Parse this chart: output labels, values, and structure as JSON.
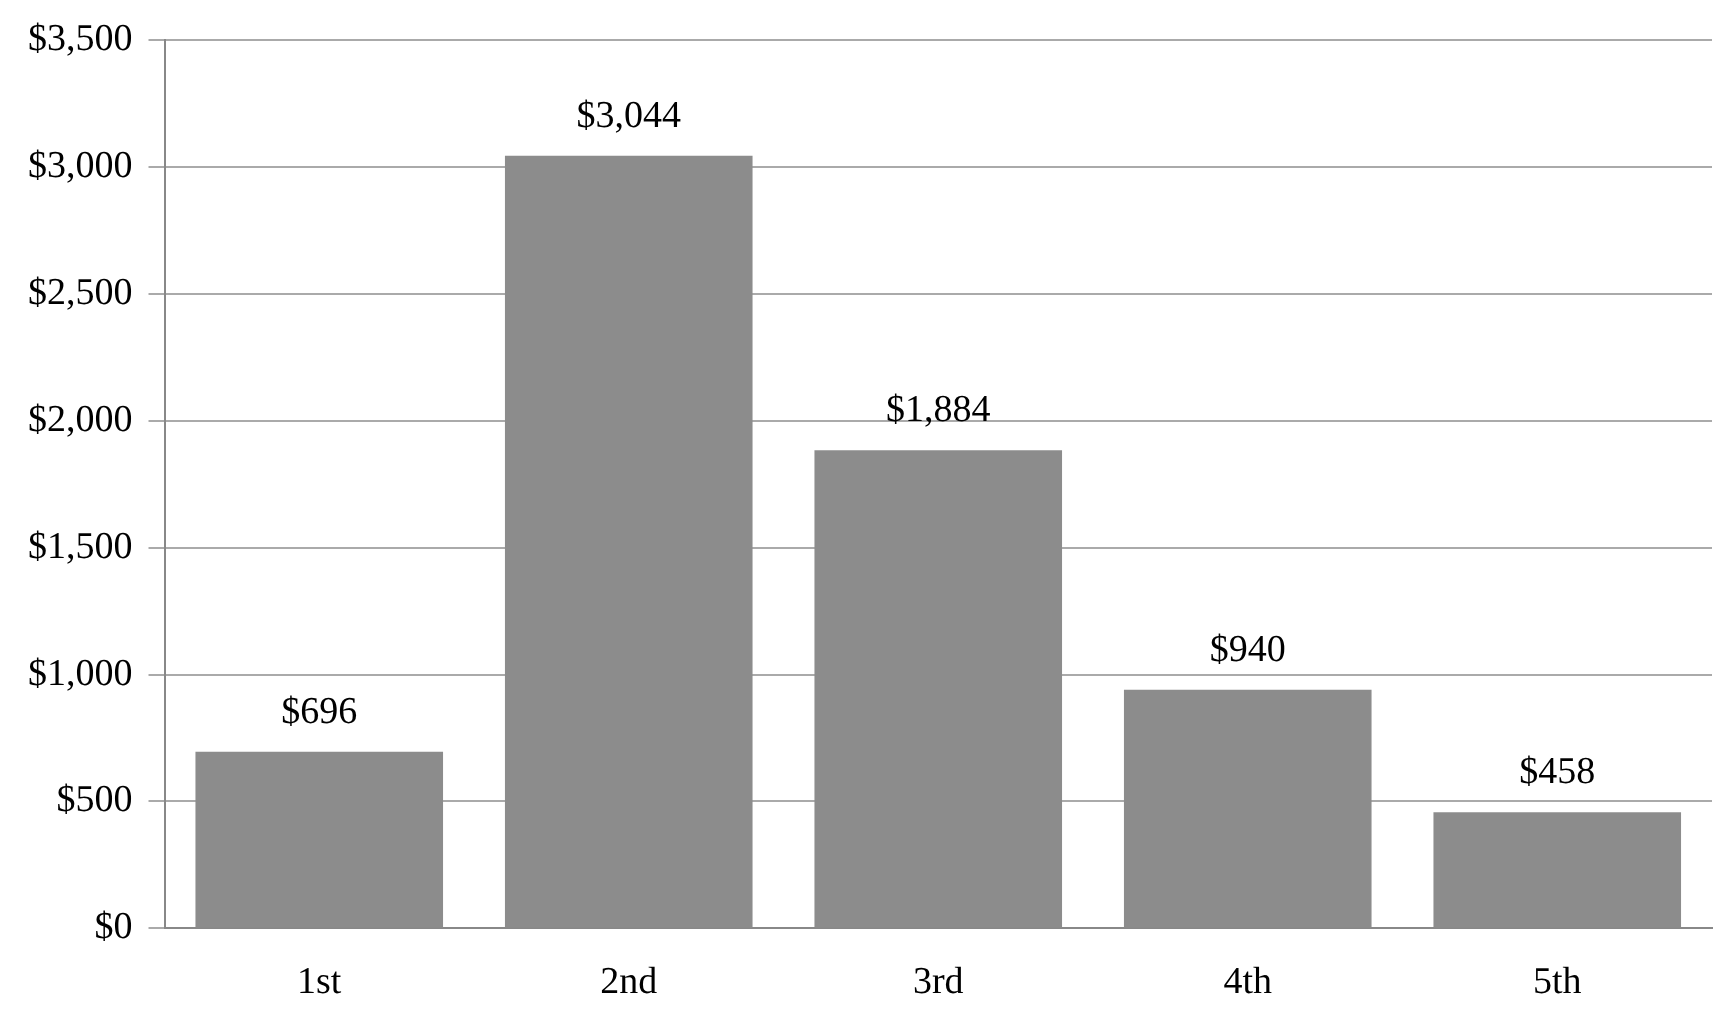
{
  "chart_data": {
    "type": "bar",
    "categories": [
      "1st",
      "2nd",
      "3rd",
      "4th",
      "5th"
    ],
    "values": [
      696,
      3044,
      1884,
      940,
      458
    ],
    "value_labels": [
      "$696",
      "$3,044",
      "$1,884",
      "$940",
      "$458"
    ],
    "color": "#8c8c8c",
    "ylim": [
      0,
      3500
    ],
    "yticks": [
      {
        "value": 0,
        "label": "$0"
      },
      {
        "value": 500,
        "label": "$500"
      },
      {
        "value": 1000,
        "label": "$1,000"
      },
      {
        "value": 1500,
        "label": "$1,500"
      },
      {
        "value": 2000,
        "label": "$2,000"
      },
      {
        "value": 2500,
        "label": "$2,500"
      },
      {
        "value": 3000,
        "label": "$3,000"
      },
      {
        "value": 3500,
        "label": "$3,500"
      }
    ],
    "grid": "y",
    "legend": false
  }
}
